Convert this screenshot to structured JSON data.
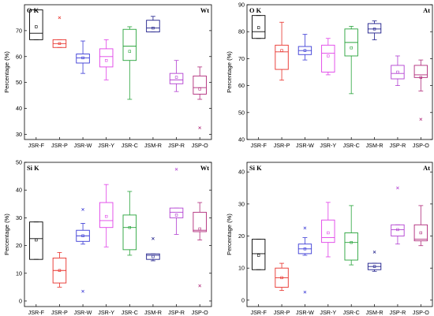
{
  "categories": [
    "JSR-F",
    "JSR-P",
    "JSR-W",
    "JSR-Y",
    "JSR-C",
    "JSM-R",
    "JSP-R",
    "JSP-O"
  ],
  "colors": [
    "#000000",
    "#e8302a",
    "#3a3ad6",
    "#e040e8",
    "#27a33a",
    "#1d1d8a",
    "#b23fd1",
    "#b02a7a"
  ],
  "chart_data": [
    {
      "type": "box",
      "title_left": "O K",
      "title_right": "Wt",
      "ylabel": "Percentage (%)",
      "ylim": [
        28,
        80
      ],
      "yticks": [
        30,
        40,
        50,
        60,
        70
      ],
      "grid": false,
      "boxes": [
        {
          "category": "JSR-F",
          "whisker_low": 66.5,
          "q1": 66.5,
          "median": 69,
          "q3": 78,
          "whisker_high": 78,
          "mean": 71.5,
          "outliers": []
        },
        {
          "category": "JSR-P",
          "whisker_low": 63.5,
          "q1": 63.5,
          "median": 65,
          "q3": 66.5,
          "whisker_high": 66.5,
          "mean": 65,
          "outliers": [
            75
          ]
        },
        {
          "category": "JSR-W",
          "whisker_low": 53.5,
          "q1": 57.5,
          "median": 59.5,
          "q3": 61,
          "whisker_high": 66,
          "mean": 59.5,
          "outliers": []
        },
        {
          "category": "JSR-Y",
          "whisker_low": 51,
          "q1": 56,
          "median": 60,
          "q3": 63,
          "whisker_high": 66.5,
          "mean": 58.5,
          "outliers": []
        },
        {
          "category": "JSR-C",
          "whisker_low": 43.5,
          "q1": 58.5,
          "median": 64,
          "q3": 70.5,
          "whisker_high": 71.5,
          "mean": 62,
          "outliers": []
        },
        {
          "category": "JSM-R",
          "whisker_low": 69.5,
          "q1": 69.5,
          "median": 71,
          "q3": 74,
          "whisker_high": 75.5,
          "mean": 71,
          "outliers": []
        },
        {
          "category": "JSP-R",
          "whisker_low": 46.5,
          "q1": 49.5,
          "median": 51,
          "q3": 53.5,
          "whisker_high": 58.5,
          "mean": 52,
          "outliers": []
        },
        {
          "category": "JSP-O",
          "whisker_low": 43.5,
          "q1": 45.5,
          "median": 48,
          "q3": 52.5,
          "whisker_high": 56,
          "mean": 47.5,
          "outliers": [
            32.5
          ]
        }
      ]
    },
    {
      "type": "box",
      "title_left": "O K",
      "title_right": "At",
      "ylabel": "Percentage (%)",
      "ylim": [
        40,
        90
      ],
      "yticks": [
        40,
        50,
        60,
        70,
        80,
        90
      ],
      "grid": false,
      "boxes": [
        {
          "category": "JSR-F",
          "whisker_low": 77.5,
          "q1": 77.5,
          "median": 80,
          "q3": 86,
          "whisker_high": 86,
          "mean": 81.5,
          "outliers": []
        },
        {
          "category": "JSR-P",
          "whisker_low": 62,
          "q1": 66,
          "median": 72.5,
          "q3": 75,
          "whisker_high": 83.5,
          "mean": 73,
          "outliers": []
        },
        {
          "category": "JSR-W",
          "whisker_low": 69.5,
          "q1": 71.5,
          "median": 73,
          "q3": 74.5,
          "whisker_high": 79,
          "mean": 73,
          "outliers": []
        },
        {
          "category": "JSR-Y",
          "whisker_low": 64,
          "q1": 65,
          "median": 72,
          "q3": 75,
          "whisker_high": 77.5,
          "mean": 71,
          "outliers": []
        },
        {
          "category": "JSR-C",
          "whisker_low": 57,
          "q1": 71,
          "median": 76,
          "q3": 81,
          "whisker_high": 82,
          "mean": 74,
          "outliers": []
        },
        {
          "category": "JSM-R",
          "whisker_low": 77,
          "q1": 79.5,
          "median": 81,
          "q3": 83,
          "whisker_high": 84,
          "mean": 81,
          "outliers": []
        },
        {
          "category": "JSP-R",
          "whisker_low": 60,
          "q1": 62.5,
          "median": 64.5,
          "q3": 67.5,
          "whisker_high": 71,
          "mean": 65,
          "outliers": []
        },
        {
          "category": "JSP-O",
          "whisker_low": 58,
          "q1": 63,
          "median": 64,
          "q3": 67.5,
          "whisker_high": 69.5,
          "mean": 63,
          "outliers": [
            47.5
          ]
        }
      ]
    },
    {
      "type": "box",
      "title_left": "Si K",
      "title_right": "Wt",
      "ylabel": "Percentage (%)",
      "ylim": [
        -2,
        50
      ],
      "yticks": [
        0,
        10,
        20,
        30,
        40,
        50
      ],
      "grid": false,
      "boxes": [
        {
          "category": "JSR-F",
          "whisker_low": 15,
          "q1": 15,
          "median": 22.5,
          "q3": 28.5,
          "whisker_high": 28.5,
          "mean": 22,
          "outliers": []
        },
        {
          "category": "JSR-P",
          "whisker_low": 5,
          "q1": 6.5,
          "median": 11,
          "q3": 15.5,
          "whisker_high": 17.5,
          "mean": 11,
          "outliers": []
        },
        {
          "category": "JSR-W",
          "whisker_low": 20.5,
          "q1": 21.5,
          "median": 23.5,
          "q3": 25.5,
          "whisker_high": 28,
          "mean": 23.5,
          "outliers": [
            33,
            3.5
          ]
        },
        {
          "category": "JSR-Y",
          "whisker_low": 19.5,
          "q1": 26.5,
          "median": 29,
          "q3": 35.5,
          "whisker_high": 42,
          "mean": 30.5,
          "outliers": []
        },
        {
          "category": "JSR-C",
          "whisker_low": 16.5,
          "q1": 18.5,
          "median": 26.5,
          "q3": 31,
          "whisker_high": 39.5,
          "mean": 26.5,
          "outliers": []
        },
        {
          "category": "JSM-R",
          "whisker_low": 14.5,
          "q1": 15,
          "median": 16.5,
          "q3": 17,
          "whisker_high": 17,
          "mean": 16,
          "outliers": [
            22.5
          ]
        },
        {
          "category": "JSP-R",
          "whisker_low": 24,
          "q1": 30,
          "median": 32,
          "q3": 33.5,
          "whisker_high": 33.5,
          "mean": 31,
          "outliers": [
            47.5
          ]
        },
        {
          "category": "JSP-O",
          "whisker_low": 22,
          "q1": 25,
          "median": 25.5,
          "q3": 32,
          "whisker_high": 35.5,
          "mean": 26,
          "outliers": [
            5.5
          ]
        }
      ]
    },
    {
      "type": "box",
      "title_left": "Si K",
      "title_right": "At",
      "ylabel": "Percentage (%)",
      "ylim": [
        -2,
        43
      ],
      "yticks": [
        0,
        10,
        20,
        30,
        40
      ],
      "grid": false,
      "boxes": [
        {
          "category": "JSR-F",
          "whisker_low": 9.5,
          "q1": 9.5,
          "median": 14.5,
          "q3": 19,
          "whisker_high": 19,
          "mean": 14,
          "outliers": []
        },
        {
          "category": "JSR-P",
          "whisker_low": 3,
          "q1": 4,
          "median": 7,
          "q3": 10,
          "whisker_high": 11.5,
          "mean": 7,
          "outliers": []
        },
        {
          "category": "JSR-W",
          "whisker_low": 14,
          "q1": 14.5,
          "median": 16,
          "q3": 17.5,
          "whisker_high": 19.5,
          "mean": 16,
          "outliers": [
            22.5,
            2.5
          ]
        },
        {
          "category": "JSR-Y",
          "whisker_low": 13.5,
          "q1": 18,
          "median": 19.5,
          "q3": 25,
          "whisker_high": 30.5,
          "mean": 21,
          "outliers": []
        },
        {
          "category": "JSR-C",
          "whisker_low": 11,
          "q1": 12.5,
          "median": 18,
          "q3": 21,
          "whisker_high": 29.5,
          "mean": 18,
          "outliers": []
        },
        {
          "category": "JSM-R",
          "whisker_low": 9,
          "q1": 9.5,
          "median": 10.5,
          "q3": 11.5,
          "whisker_high": 11.5,
          "mean": 10.5,
          "outliers": [
            15
          ]
        },
        {
          "category": "JSP-R",
          "whisker_low": 17.5,
          "q1": 20,
          "median": 22,
          "q3": 23.5,
          "whisker_high": 23.5,
          "mean": 22,
          "outliers": [
            35
          ]
        },
        {
          "category": "JSP-O",
          "whisker_low": 17,
          "q1": 18.5,
          "median": 19,
          "q3": 23.5,
          "whisker_high": 29.5,
          "mean": 21,
          "outliers": []
        }
      ]
    }
  ]
}
